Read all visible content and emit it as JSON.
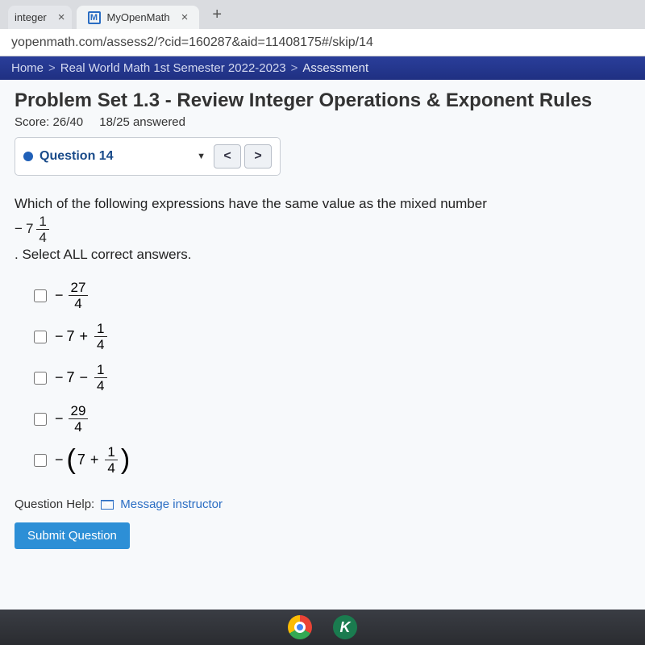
{
  "browser": {
    "prev_tab_fragment": "integer",
    "tab_title": "MyOpenMath",
    "tab_logo_letter": "M",
    "url": "yopenmath.com/assess2/?cid=160287&aid=11408175#/skip/14"
  },
  "breadcrumb": {
    "home": "Home",
    "course": "Real World Math 1st Semester 2022-2023",
    "page": "Assessment"
  },
  "header": {
    "title": "Problem Set 1.3 - Review Integer Operations & Exponent Rules",
    "score_label": "Score:",
    "score_value": "26/40",
    "answered": "18/25 answered"
  },
  "qnav": {
    "label": "Question 14",
    "prev": "<",
    "next": ">"
  },
  "question": {
    "prompt_pre": "Which of the following expressions have the same value as the mixed number ",
    "mixed_sign": "−",
    "mixed_whole": "7",
    "mixed_num": "1",
    "mixed_den": "4",
    "prompt_post": ". Select ALL correct answers."
  },
  "options": {
    "a": {
      "sign": "−",
      "num": "27",
      "den": "4"
    },
    "b": {
      "sign": "−",
      "whole": "7",
      "op": "+",
      "num": "1",
      "den": "4"
    },
    "c": {
      "sign": "−",
      "whole": "7",
      "op": "−",
      "num": "1",
      "den": "4"
    },
    "d": {
      "sign": "−",
      "num": "29",
      "den": "4"
    },
    "e": {
      "sign": "−",
      "lp": "(",
      "whole": "7",
      "op": "+",
      "num": "1",
      "den": "4",
      "rp": ")"
    }
  },
  "help": {
    "label": "Question Help:",
    "link": "Message instructor"
  },
  "submit": "Submit Question",
  "dock": {
    "k_letter": "K"
  }
}
